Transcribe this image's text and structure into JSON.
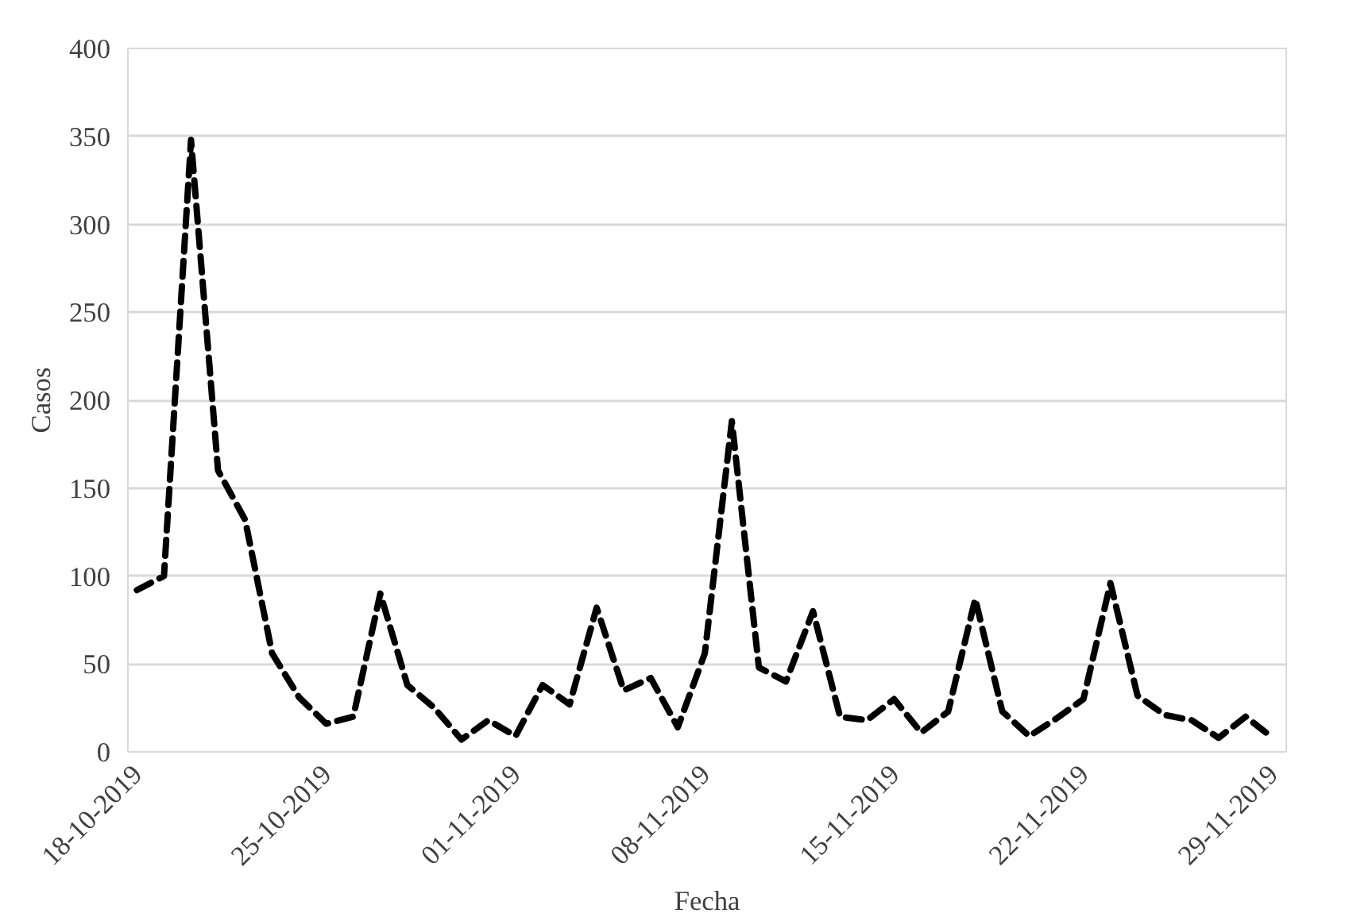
{
  "chart_data": {
    "type": "line",
    "xlabel": "Fecha",
    "ylabel": "Casos",
    "x": [
      "2019-10-18",
      "2019-10-19",
      "2019-10-20",
      "2019-10-21",
      "2019-10-22",
      "2019-10-23",
      "2019-10-24",
      "2019-10-25",
      "2019-10-26",
      "2019-10-27",
      "2019-10-28",
      "2019-10-29",
      "2019-10-30",
      "2019-10-31",
      "2019-11-01",
      "2019-11-02",
      "2019-11-03",
      "2019-11-04",
      "2019-11-05",
      "2019-11-06",
      "2019-11-07",
      "2019-11-08",
      "2019-11-09",
      "2019-11-10",
      "2019-11-11",
      "2019-11-12",
      "2019-11-13",
      "2019-11-14",
      "2019-11-15",
      "2019-11-16",
      "2019-11-17",
      "2019-11-18",
      "2019-11-19",
      "2019-11-20",
      "2019-11-21",
      "2019-11-22",
      "2019-11-23",
      "2019-11-24",
      "2019-11-25",
      "2019-11-26",
      "2019-11-27",
      "2019-11-28",
      "2019-11-29"
    ],
    "series": [
      {
        "color": "#000000",
        "values": [
          92,
          100,
          348,
          160,
          132,
          56,
          31,
          16,
          20,
          90,
          38,
          25,
          7,
          18,
          9,
          38,
          27,
          82,
          35,
          42,
          14,
          56,
          188,
          48,
          40,
          80,
          20,
          18,
          30,
          11,
          23,
          87,
          23,
          9,
          19,
          30,
          96,
          32,
          21,
          18,
          8,
          20,
          8
        ]
      }
    ],
    "line_style": "dashed",
    "marker": "none",
    "grid": "y",
    "xlim": [
      "2019-10-17T16:00",
      "2019-11-29T12:00"
    ],
    "xticks": [
      {
        "value": "2019-10-18",
        "label": "18-10-2019"
      },
      {
        "value": "2019-10-25",
        "label": "25-10-2019"
      },
      {
        "value": "2019-11-01",
        "label": "01-11-2019"
      },
      {
        "value": "2019-11-08",
        "label": "08-11-2019"
      },
      {
        "value": "2019-11-15",
        "label": "15-11-2019"
      },
      {
        "value": "2019-11-22",
        "label": "22-11-2019"
      },
      {
        "value": "2019-11-29",
        "label": "29-11-2019"
      }
    ],
    "ylim": [
      0,
      400
    ],
    "yticks": [
      0,
      50,
      100,
      150,
      200,
      250,
      300,
      350,
      400
    ]
  }
}
